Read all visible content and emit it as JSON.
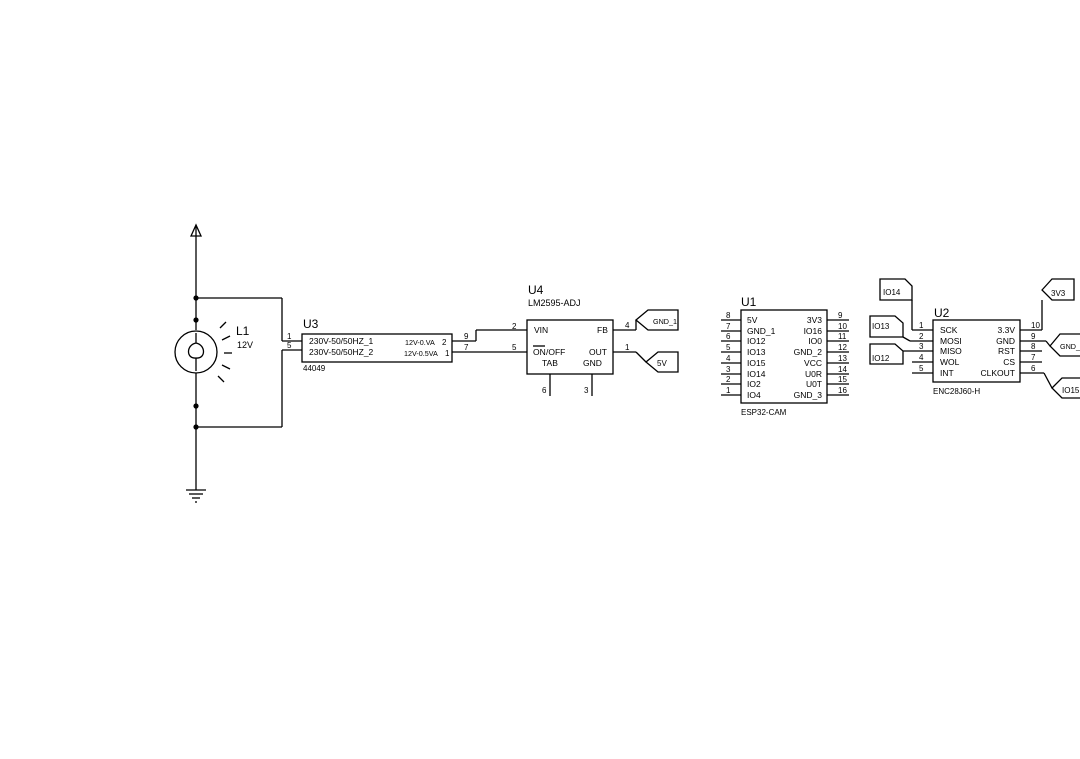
{
  "components": {
    "L1": {
      "ref": "L1",
      "value": "12V"
    },
    "U3": {
      "ref": "U3",
      "part": "44049",
      "pins_left": [
        "230V-50/50HZ_1",
        "230V-50/50HZ_2"
      ],
      "pinnums_left": [
        "1",
        "5"
      ],
      "pins_right": [
        "12V-0.VA",
        "12V-0.5VA"
      ],
      "pinnums_right_inner": [
        "2",
        "1"
      ],
      "pinnums_right_outer": [
        "9",
        "7"
      ]
    },
    "U4": {
      "ref": "U4",
      "part": "LM2595-ADJ",
      "pins": {
        "vin": "VIN",
        "on": "ON",
        "off": "/OFF",
        "tab": "TAB",
        "fb": "FB",
        "out": "OUT",
        "gnd": "GND"
      },
      "pinnums": {
        "vin": "2",
        "on": "5",
        "tab": "6",
        "gnd": "3",
        "fb": "4",
        "out": "1"
      }
    },
    "U1": {
      "ref": "U1",
      "part": "ESP32-CAM",
      "pins_left": [
        "5V",
        "GND_1",
        "IO12",
        "IO13",
        "IO15",
        "IO14",
        "IO2",
        "IO4"
      ],
      "pinnums_left": [
        "8",
        "7",
        "6",
        "5",
        "4",
        "3",
        "2",
        "1"
      ],
      "pins_right": [
        "3V3",
        "IO16",
        "IO0",
        "GND_2",
        "VCC",
        "U0R",
        "U0T",
        "GND_3"
      ],
      "pinnums_right": [
        "9",
        "10",
        "11",
        "12",
        "13",
        "14",
        "15",
        "16"
      ]
    },
    "U2": {
      "ref": "U2",
      "part": "ENC28J60-H",
      "pins_left": [
        "SCK",
        "MOSI",
        "MISO",
        "WOL",
        "INT"
      ],
      "pinnums_left": [
        "1",
        "2",
        "3",
        "4",
        "5"
      ],
      "pins_right": [
        "3.3V",
        "GND",
        "RST",
        "CS",
        "CLKOUT"
      ],
      "pinnums_right": [
        "10",
        "9",
        "8",
        "7",
        "6"
      ]
    }
  },
  "net_labels": {
    "gnd_fb": "GND_1",
    "v5": "5V",
    "io14": "IO14",
    "io13": "IO13",
    "io12": "IO12",
    "v3v3": "3V3",
    "gnd_right": "GND_",
    "io15": "IO15"
  }
}
